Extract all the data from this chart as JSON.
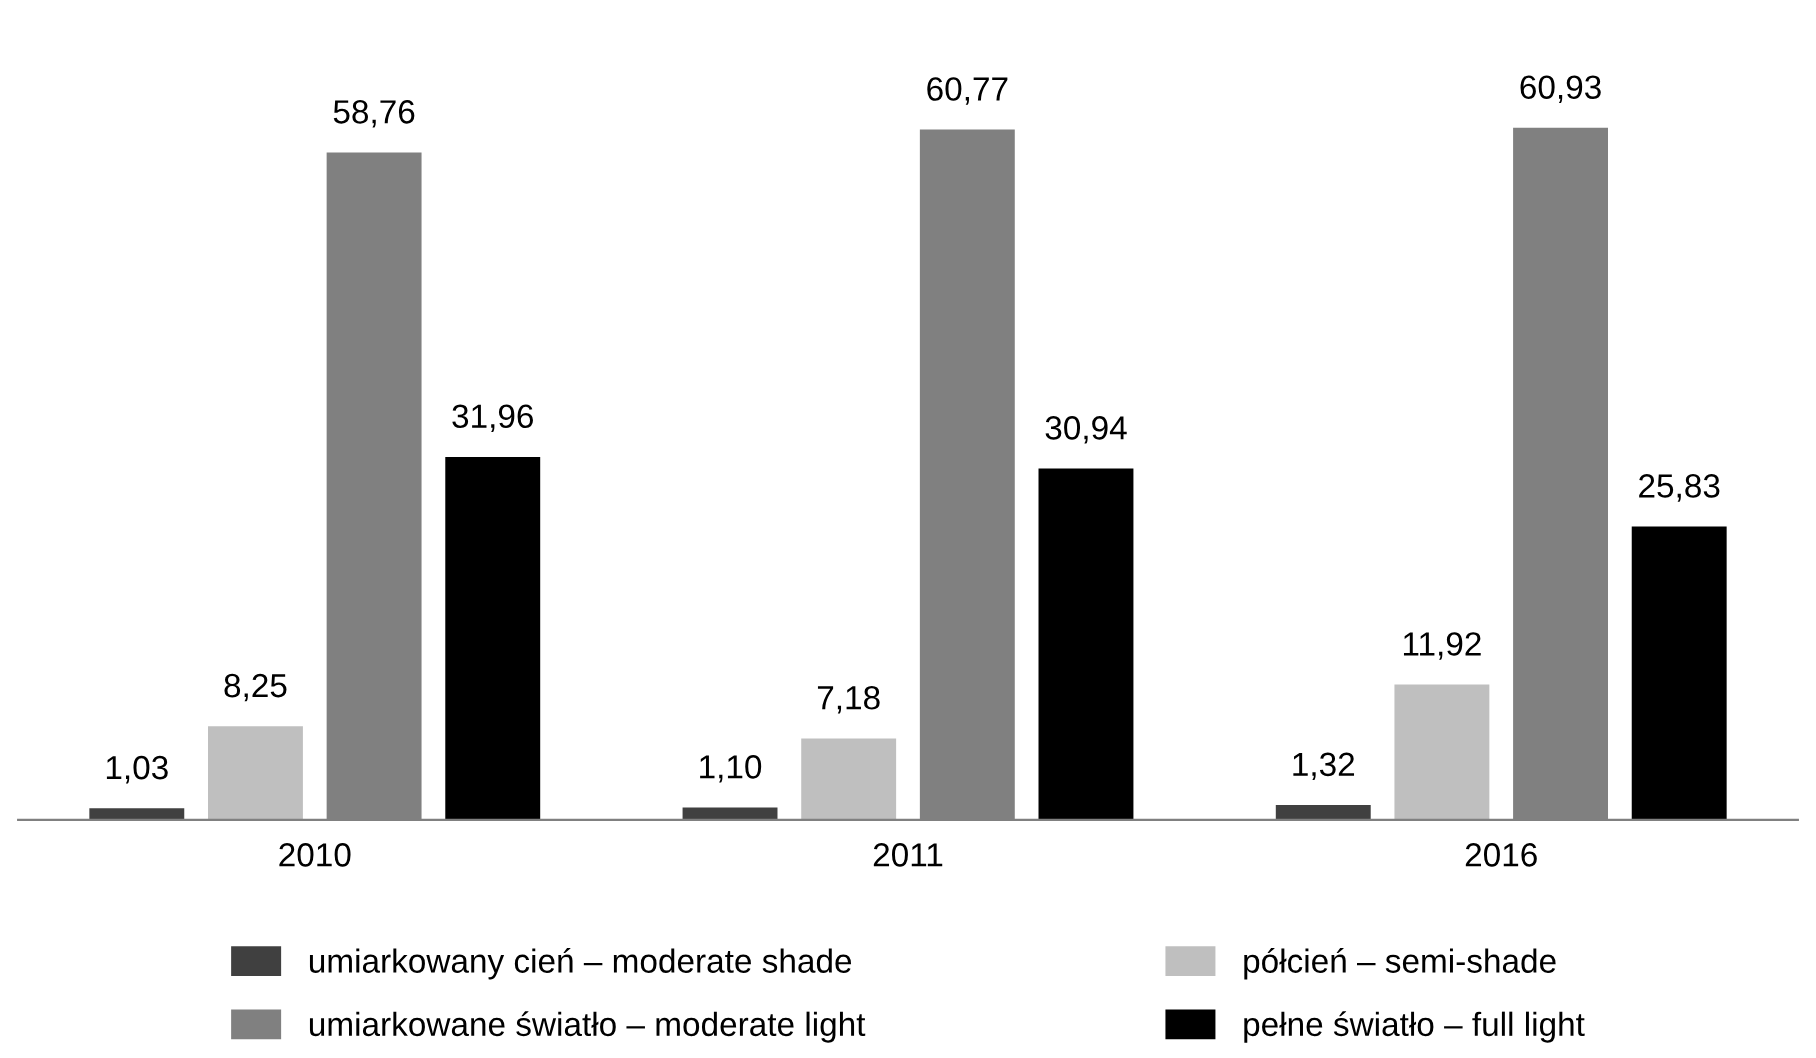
{
  "chart_data": {
    "type": "bar",
    "categories": [
      "2010",
      "2011",
      "2016"
    ],
    "series": [
      {
        "name": "umiarkowany cień – moderate shade",
        "color": "#404040",
        "values": [
          1.03,
          1.1,
          1.32
        ],
        "value_labels": [
          "1,03",
          "1,10",
          "1,32"
        ]
      },
      {
        "name": "półcień – semi-shade",
        "color": "#bfbfbf",
        "values": [
          8.25,
          7.18,
          11.92
        ],
        "value_labels": [
          "8,25",
          "7,18",
          "11,92"
        ]
      },
      {
        "name": "umiarkowane światło – moderate light",
        "color": "#808080",
        "values": [
          58.76,
          60.77,
          60.93
        ],
        "value_labels": [
          "58,76",
          "60,77",
          "60,93"
        ]
      },
      {
        "name": "pełne światło – full light",
        "color": "#000000",
        "values": [
          31.96,
          30.94,
          25.83
        ],
        "value_labels": [
          "31,96",
          "30,94",
          "25,83"
        ]
      }
    ],
    "legend": "bottom",
    "grid": false
  }
}
